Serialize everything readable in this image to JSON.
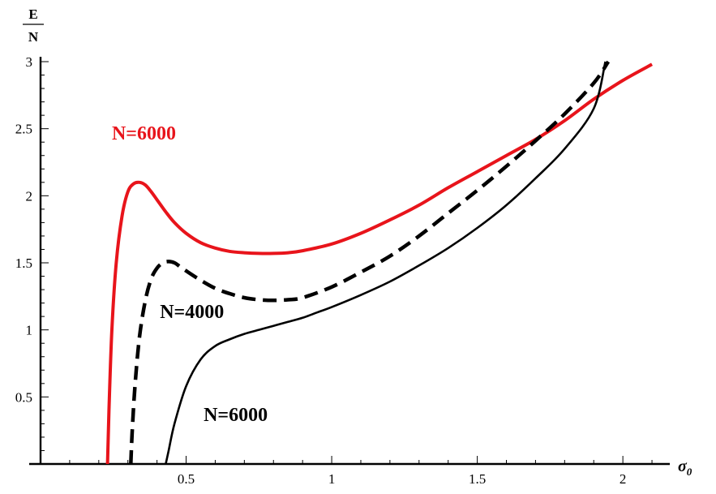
{
  "chart_data": {
    "type": "line",
    "title": "",
    "xlabel": "σ",
    "xlabel_subscript": "0",
    "ylabel_numerator": "E",
    "ylabel_denominator": "N",
    "xlim": [
      0,
      2.15
    ],
    "ylim": [
      0,
      3
    ],
    "x_ticks": [
      {
        "value": 0.5,
        "label": "0.5"
      },
      {
        "value": 1,
        "label": "1"
      },
      {
        "value": 1.5,
        "label": "1.5"
      },
      {
        "value": 2,
        "label": "2"
      }
    ],
    "y_ticks": [
      {
        "value": 0.5,
        "label": "0.5"
      },
      {
        "value": 1,
        "label": "1"
      },
      {
        "value": 1.5,
        "label": "1.5"
      },
      {
        "value": 2,
        "label": "2"
      },
      {
        "value": 2.5,
        "label": "2.5"
      },
      {
        "value": 3,
        "label": "3"
      }
    ],
    "grid": false,
    "legend": "none",
    "series": [
      {
        "color": "#e8141b",
        "style": "solid",
        "x": [
          0.23,
          0.235,
          0.245,
          0.26,
          0.28,
          0.3,
          0.32,
          0.34,
          0.36,
          0.38,
          0.4,
          0.43,
          0.46,
          0.5,
          0.55,
          0.6,
          0.65,
          0.7,
          0.75,
          0.8,
          0.85,
          0.9,
          1.0,
          1.1,
          1.2,
          1.3,
          1.4,
          1.5,
          1.6,
          1.7,
          1.8,
          1.9,
          2.0,
          2.1
        ],
        "y": [
          0.0,
          0.4,
          1.0,
          1.5,
          1.85,
          2.03,
          2.09,
          2.1,
          2.08,
          2.03,
          1.97,
          1.88,
          1.8,
          1.72,
          1.65,
          1.61,
          1.585,
          1.575,
          1.57,
          1.57,
          1.575,
          1.59,
          1.64,
          1.72,
          1.82,
          1.93,
          2.06,
          2.18,
          2.3,
          2.42,
          2.56,
          2.72,
          2.86,
          2.98
        ]
      },
      {
        "color": "#000000",
        "style": "dashed",
        "x": [
          0.31,
          0.315,
          0.325,
          0.34,
          0.36,
          0.38,
          0.4,
          0.42,
          0.44,
          0.46,
          0.48,
          0.5,
          0.55,
          0.6,
          0.65,
          0.7,
          0.75,
          0.8,
          0.85,
          0.9,
          1.0,
          1.1,
          1.2,
          1.3,
          1.4,
          1.5,
          1.6,
          1.7,
          1.8,
          1.9,
          1.95
        ],
        "y": [
          0.0,
          0.25,
          0.6,
          0.95,
          1.22,
          1.38,
          1.46,
          1.5,
          1.51,
          1.5,
          1.47,
          1.44,
          1.37,
          1.31,
          1.27,
          1.24,
          1.225,
          1.22,
          1.225,
          1.24,
          1.32,
          1.43,
          1.55,
          1.7,
          1.87,
          2.04,
          2.22,
          2.41,
          2.61,
          2.84,
          3.0
        ]
      },
      {
        "color": "#000000",
        "style": "solid-thin",
        "x": [
          0.43,
          0.44,
          0.46,
          0.5,
          0.55,
          0.6,
          0.65,
          0.7,
          0.75,
          0.8,
          0.85,
          0.9,
          0.95,
          1.0,
          1.1,
          1.2,
          1.3,
          1.4,
          1.5,
          1.6,
          1.7,
          1.8,
          1.9,
          1.94
        ],
        "y": [
          0.0,
          0.1,
          0.3,
          0.58,
          0.78,
          0.88,
          0.93,
          0.97,
          1.0,
          1.03,
          1.06,
          1.09,
          1.13,
          1.17,
          1.26,
          1.36,
          1.48,
          1.61,
          1.76,
          1.93,
          2.13,
          2.35,
          2.65,
          3.0
        ]
      }
    ],
    "annotations": [
      {
        "text": "N=6000",
        "x": 0.245,
        "y": 2.42,
        "color": "#e8141b"
      },
      {
        "text": "N=4000",
        "x": 0.41,
        "y": 1.09,
        "color": "#000000"
      },
      {
        "text": "N=6000",
        "x": 0.56,
        "y": 0.32,
        "color": "#000000"
      }
    ]
  }
}
